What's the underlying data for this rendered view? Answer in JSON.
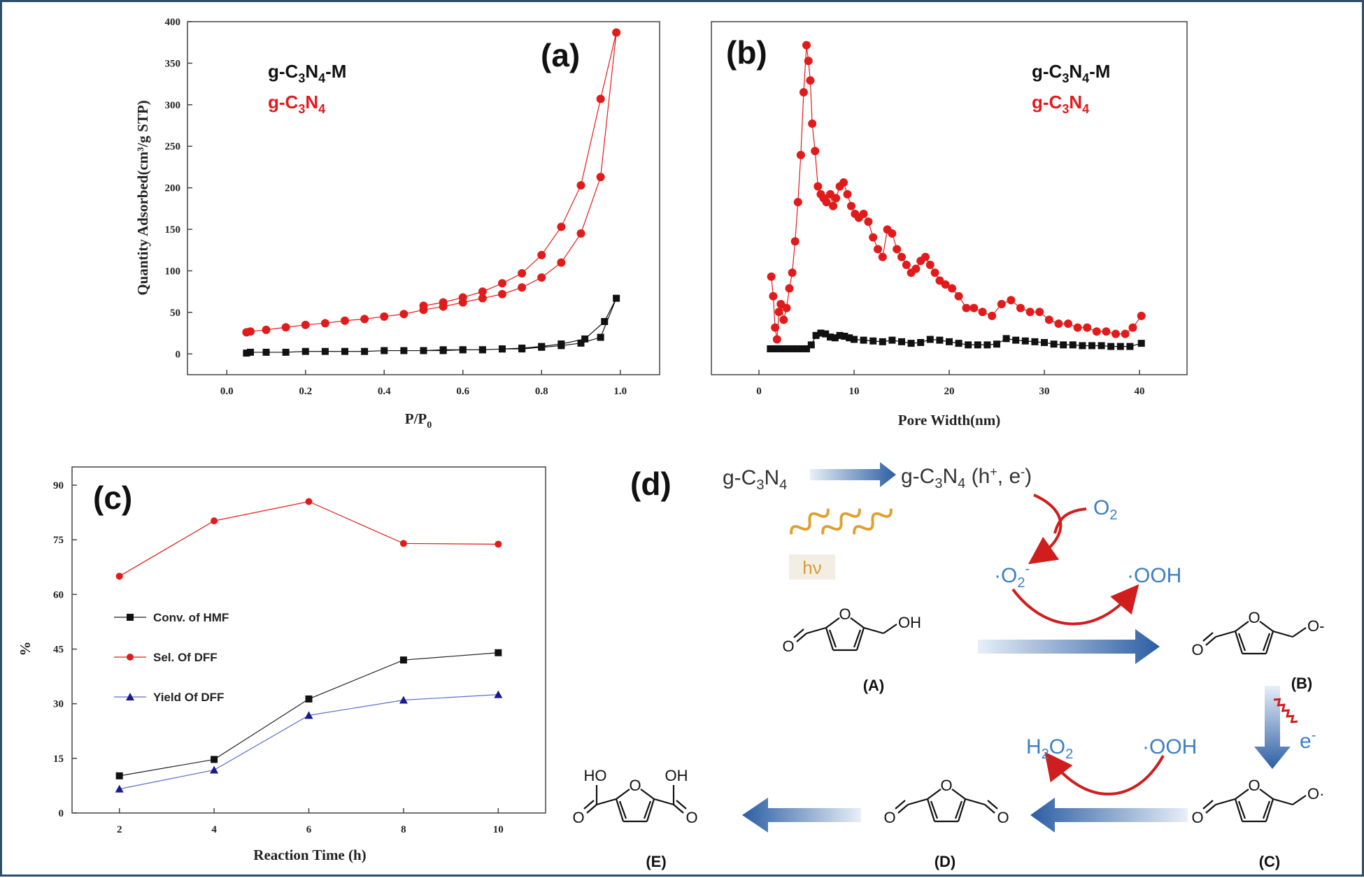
{
  "colors": {
    "black_series": "#111111",
    "red_series": "#e11b1b",
    "blue_series": "#1a1a8c",
    "accent_blue": "#3c7fc4",
    "arrow_red": "#d01d1d",
    "frame": "#2d4f66"
  },
  "chart_data": [
    {
      "id": "a",
      "panel_label": "(a)",
      "type": "scatter",
      "xlabel_main": "P/P",
      "xlabel_sub": "0",
      "ylabel": "Quantity Adsorbed(cm³/g STP)",
      "xlim": [
        -0.1,
        1.1
      ],
      "ylim": [
        -25,
        400
      ],
      "xticks": [
        "0.0",
        "0.2",
        "0.4",
        "0.6",
        "0.8",
        "1.0"
      ],
      "yticks": [
        "0",
        "50",
        "100",
        "150",
        "200",
        "250",
        "300",
        "350",
        "400"
      ],
      "legend": [
        "g-C3N4-M",
        "g-C3N4"
      ],
      "legend_placement": "top-left",
      "series": [
        {
          "name": "g-C3N4-M",
          "color": "black",
          "marker": "square",
          "x": [
            0.05,
            0.06,
            0.1,
            0.15,
            0.2,
            0.25,
            0.3,
            0.35,
            0.4,
            0.45,
            0.5,
            0.55,
            0.6,
            0.65,
            0.7,
            0.75,
            0.8,
            0.85,
            0.9,
            0.95,
            0.99,
            0.96,
            0.91,
            0.85,
            0.8,
            0.75,
            0.7,
            0.65,
            0.6,
            0.55,
            0.5
          ],
          "y": [
            1,
            2,
            2,
            2,
            3,
            3,
            3,
            3,
            4,
            4,
            4,
            4,
            5,
            5,
            6,
            6,
            8,
            10,
            13,
            20,
            67,
            39,
            18,
            12,
            9,
            7,
            6,
            5,
            5,
            5,
            4
          ]
        },
        {
          "name": "g-C3N4",
          "color": "red",
          "marker": "circle",
          "x": [
            0.05,
            0.06,
            0.1,
            0.15,
            0.2,
            0.25,
            0.3,
            0.35,
            0.4,
            0.45,
            0.5,
            0.55,
            0.6,
            0.65,
            0.7,
            0.75,
            0.8,
            0.85,
            0.9,
            0.95,
            0.99,
            0.95,
            0.9,
            0.85,
            0.8,
            0.75,
            0.7,
            0.65,
            0.6,
            0.55,
            0.5
          ],
          "y": [
            26,
            27,
            29,
            32,
            35,
            37,
            40,
            42,
            45,
            48,
            53,
            57,
            62,
            67,
            72,
            80,
            92,
            110,
            145,
            213,
            387,
            307,
            203,
            153,
            119,
            97,
            85,
            75,
            68,
            62,
            58
          ]
        }
      ]
    },
    {
      "id": "b",
      "panel_label": "(b)",
      "type": "line",
      "xlabel": "Pore Width(nm)",
      "ylabel": "",
      "xlim": [
        -5,
        45
      ],
      "ylim": [
        -30,
        420
      ],
      "xticks": [
        "0",
        "10",
        "20",
        "30",
        "40"
      ],
      "legend": [
        "g-C3N4-M",
        "g-C3N4"
      ],
      "legend_placement": "top-right",
      "series": [
        {
          "name": "g-C3N4-M",
          "color": "black",
          "marker": "square",
          "x": [
            1.2,
            1.6,
            2.0,
            2.5,
            3.0,
            3.5,
            4.0,
            4.5,
            5.0,
            5.5,
            6.0,
            6.5,
            7.0,
            7.5,
            8.0,
            8.5,
            9.0,
            9.5,
            10,
            11,
            12,
            13,
            14,
            15,
            16,
            17,
            18,
            19,
            20,
            21,
            22,
            23,
            24,
            25,
            26,
            27,
            28,
            29,
            30,
            31,
            32,
            33,
            34,
            35,
            36,
            37,
            38,
            39,
            40.2
          ],
          "y": [
            3,
            3,
            3,
            3,
            3,
            3,
            3,
            3,
            3,
            8,
            20,
            23,
            22,
            18,
            17,
            20,
            19,
            17,
            15,
            14,
            13,
            12,
            14,
            12,
            10,
            11,
            15,
            14,
            12,
            10,
            8,
            8,
            8,
            9,
            16,
            14,
            13,
            12,
            11,
            9,
            8,
            8,
            7,
            7,
            7,
            6,
            6,
            6,
            10
          ]
        },
        {
          "name": "g-C3N4",
          "color": "red",
          "marker": "circle",
          "x": [
            1.3,
            1.5,
            1.7,
            1.9,
            2.1,
            2.3,
            2.6,
            2.9,
            3.2,
            3.5,
            3.8,
            4.1,
            4.4,
            4.7,
            5.0,
            5.2,
            5.4,
            5.6,
            5.9,
            6.2,
            6.5,
            6.8,
            7.1,
            7.5,
            7.8,
            8.1,
            8.5,
            8.9,
            9.3,
            9.7,
            10.1,
            10.5,
            11.0,
            11.5,
            12.0,
            12.5,
            13.0,
            13.5,
            14.0,
            14.5,
            15.0,
            15.5,
            16.0,
            16.5,
            17.0,
            17.5,
            18.0,
            18.5,
            19.0,
            19.6,
            20.3,
            21.0,
            21.8,
            22.6,
            23.5,
            24.5,
            25.5,
            26.5,
            27.5,
            28.5,
            29.5,
            30.5,
            31.5,
            32.5,
            33.5,
            34.5,
            35.5,
            36.5,
            37.5,
            38.5,
            39.3,
            40.2
          ],
          "y": [
            95,
            70,
            30,
            15,
            50,
            60,
            40,
            55,
            80,
            100,
            140,
            190,
            250,
            330,
            390,
            370,
            345,
            290,
            255,
            210,
            200,
            195,
            190,
            200,
            185,
            195,
            210,
            215,
            200,
            185,
            175,
            170,
            175,
            165,
            145,
            130,
            120,
            155,
            150,
            130,
            120,
            110,
            100,
            105,
            115,
            120,
            110,
            100,
            90,
            85,
            80,
            70,
            55,
            55,
            50,
            45,
            60,
            65,
            55,
            50,
            50,
            40,
            35,
            35,
            30,
            30,
            25,
            25,
            22,
            22,
            30,
            45
          ]
        }
      ]
    },
    {
      "id": "c",
      "panel_label": "(c)",
      "type": "line",
      "xlabel": "Reaction Time (h)",
      "ylabel": "%",
      "x": [
        2,
        4,
        6,
        8,
        10
      ],
      "xlim": [
        1,
        11
      ],
      "ylim": [
        0,
        95
      ],
      "xticks": [
        "2",
        "4",
        "6",
        "8",
        "10"
      ],
      "yticks": [
        "0",
        "15",
        "30",
        "45",
        "60",
        "75",
        "90"
      ],
      "legend_placement": "center-left",
      "series": [
        {
          "name": "Conv. of HMF",
          "color": "black",
          "marker": "square",
          "values": [
            10.2,
            14.7,
            31.3,
            42.0,
            44.0
          ]
        },
        {
          "name": "Sel. Of DFF",
          "color": "red",
          "marker": "circle",
          "values": [
            65.0,
            80.2,
            85.5,
            74.0,
            73.8
          ]
        },
        {
          "name": "Yield Of DFF",
          "color": "blue",
          "marker": "triangle",
          "values": [
            6.6,
            11.8,
            26.8,
            31.0,
            32.5
          ]
        }
      ]
    }
  ],
  "scheme": {
    "panel_label": "(d)",
    "catalyst": "g-C3N4",
    "excited": "g-C3N4 (h+, e-)",
    "light": "hν",
    "oxygen": "O2",
    "superoxide": "·O2-",
    "hydroperoxyl_1": "·OOH",
    "hydroperoxyl_2": "·OOH",
    "peroxide": "H2O2",
    "electron": "e-",
    "compounds": {
      "A": "(A)",
      "B": "(B)",
      "C": "(C)",
      "D": "(D)",
      "E": "(E)"
    },
    "atoms": {
      "O": "O",
      "OH": "OH",
      "HO": "HO",
      "O_minus": "O-",
      "O_radical": "O·"
    }
  }
}
